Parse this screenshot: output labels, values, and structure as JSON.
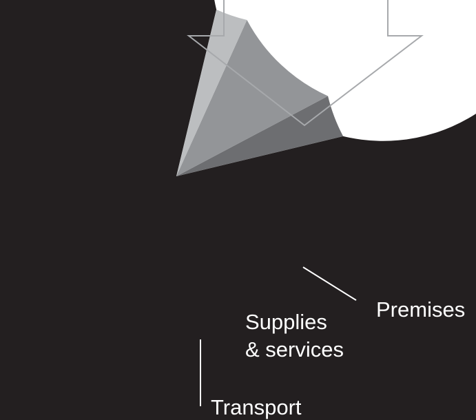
{
  "chart_data": {
    "type": "pie",
    "title": "",
    "slices": [
      {
        "label": "",
        "value": 82.5,
        "color": "#ffffff"
      },
      {
        "label": "Premises",
        "value": 4.0,
        "color": "#6d6e71"
      },
      {
        "label": "Supplies\n& services",
        "value": 10.5,
        "color": "#939598"
      },
      {
        "label": "Transport",
        "value": 3.0,
        "color": "#bcbec0"
      }
    ],
    "start_angle_deg": 76.5,
    "direction": "clockwise",
    "legend": "none",
    "colors": {
      "background": "#231f20",
      "callout_outline": "#a7a9ac"
    }
  }
}
